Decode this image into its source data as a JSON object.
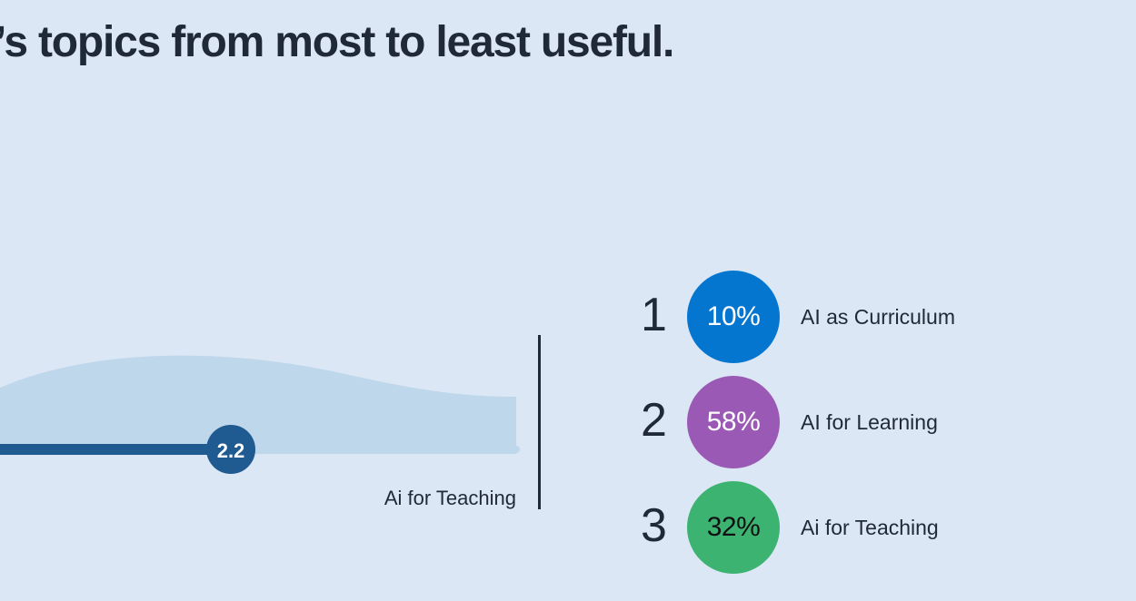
{
  "header": {
    "title": "’s topics from most to least useful."
  },
  "chart_data": {
    "type": "bar",
    "categories": [
      "Ai for Teaching"
    ],
    "values": [
      2.2
    ],
    "value_labels": [
      "2.2"
    ],
    "bar_color": "#1f5a91",
    "distribution_color": "#bfd7eb"
  },
  "ranking": {
    "items": [
      {
        "rank": "1",
        "percent": "10%",
        "topic": "AI as Curriculum",
        "color": "#0576d0",
        "text_color": "#ffffff"
      },
      {
        "rank": "2",
        "percent": "58%",
        "topic": "AI for Learning",
        "color": "#9b59b6",
        "text_color": "#ffffff"
      },
      {
        "rank": "3",
        "percent": "32%",
        "topic": "Ai for Teaching",
        "color": "#3cb371",
        "text_color": "#111111"
      }
    ]
  }
}
